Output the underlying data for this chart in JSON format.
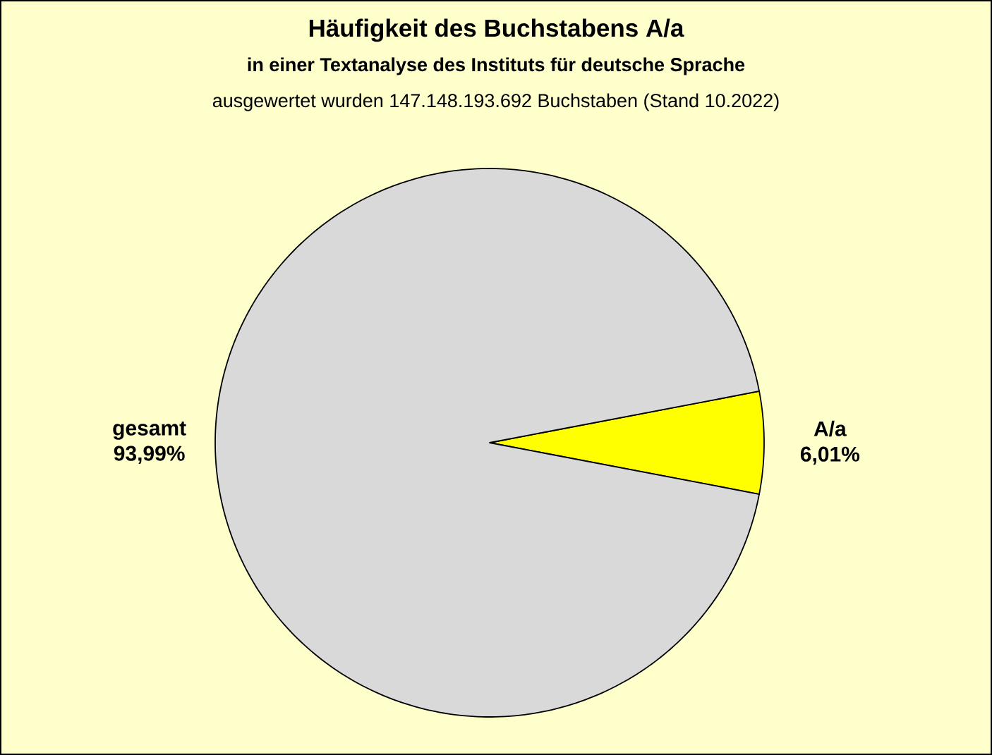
{
  "chart_data": {
    "type": "pie",
    "title": "Häufigkeit des Buchstabens A/a",
    "subtitle": "in einer Textanalyse des Instituts für deutsche Sprache",
    "annotations": [
      "ausgewertet  wurden 147.148.193.692 Buchstaben (Stand 10.2022)"
    ],
    "categories": [
      "A/a",
      "gesamt"
    ],
    "values": [
      6.01,
      93.99
    ],
    "value_labels": [
      "6,01%",
      "93,99%"
    ],
    "colors": [
      "#ffff00",
      "#d9d9d9"
    ]
  }
}
